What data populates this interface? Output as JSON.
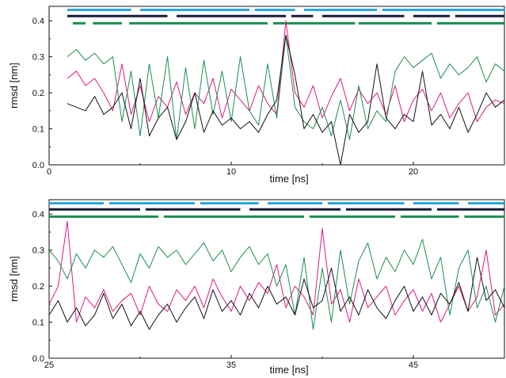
{
  "chart_data": [
    {
      "type": "line",
      "title": "",
      "xlabel": "time [ns]",
      "ylabel": "rmsd [nm]",
      "xlim": [
        0,
        25
      ],
      "ylim": [
        0,
        0.44
      ],
      "x_ticks": [
        "0",
        "10",
        "20"
      ],
      "y_ticks": [
        "0.0",
        "0.1",
        "0.2",
        "0.3",
        "0.4"
      ],
      "grid": false,
      "legend": "none",
      "series": [
        {
          "color": "#e0197d",
          "x": [
            1,
            1.5,
            2,
            2.5,
            3,
            3.5,
            4,
            4.5,
            5,
            5.5,
            6,
            6.5,
            7,
            7.5,
            8,
            8.5,
            9,
            9.5,
            10,
            10.5,
            11,
            11.5,
            12,
            12.5,
            13,
            13.5,
            14,
            14.5,
            15,
            15.5,
            16,
            16.5,
            17,
            17.5,
            18,
            18.5,
            19,
            19.5,
            20,
            20.5,
            21,
            21.5,
            22,
            22.5,
            23,
            23.5,
            24,
            24.5,
            25
          ],
          "y": [
            0.24,
            0.26,
            0.22,
            0.24,
            0.2,
            0.15,
            0.28,
            0.14,
            0.22,
            0.12,
            0.19,
            0.16,
            0.23,
            0.14,
            0.2,
            0.17,
            0.24,
            0.13,
            0.21,
            0.18,
            0.15,
            0.22,
            0.17,
            0.14,
            0.4,
            0.2,
            0.16,
            0.22,
            0.13,
            0.19,
            0.24,
            0.15,
            0.21,
            0.17,
            0.2,
            0.14,
            0.22,
            0.12,
            0.18,
            0.21,
            0.15,
            0.2,
            0.13,
            0.17,
            0.2,
            0.12,
            0.16,
            0.18,
            0.17
          ]
        },
        {
          "color": "#1a8f4e",
          "x": [
            1,
            1.5,
            2,
            2.5,
            3,
            3.5,
            4,
            4.5,
            5,
            5.5,
            6,
            6.5,
            7,
            7.5,
            8,
            8.5,
            9,
            9.5,
            10,
            10.5,
            11,
            11.5,
            12,
            12.5,
            13,
            13.5,
            14,
            14.5,
            15,
            15.5,
            16,
            16.5,
            17,
            17.5,
            18,
            18.5,
            19,
            19.5,
            20,
            20.5,
            21,
            21.5,
            22,
            22.5,
            23,
            23.5,
            24,
            24.5,
            25
          ],
          "y": [
            0.3,
            0.32,
            0.29,
            0.31,
            0.28,
            0.3,
            0.12,
            0.26,
            0.08,
            0.28,
            0.13,
            0.3,
            0.07,
            0.27,
            0.1,
            0.29,
            0.14,
            0.26,
            0.12,
            0.3,
            0.15,
            0.11,
            0.28,
            0.13,
            0.36,
            0.16,
            0.12,
            0.1,
            0.16,
            0.08,
            0.18,
            0.07,
            0.22,
            0.1,
            0.15,
            0.12,
            0.26,
            0.3,
            0.27,
            0.29,
            0.31,
            0.24,
            0.28,
            0.25,
            0.27,
            0.3,
            0.23,
            0.28,
            0.26
          ]
        },
        {
          "color": "#111111",
          "x": [
            1,
            1.5,
            2,
            2.5,
            3,
            3.5,
            4,
            4.5,
            5,
            5.5,
            6,
            6.5,
            7,
            7.5,
            8,
            8.5,
            9,
            9.5,
            10,
            10.5,
            11,
            11.5,
            12,
            12.5,
            13,
            13.5,
            14,
            14.5,
            15,
            15.5,
            16,
            16.5,
            17,
            17.5,
            18,
            18.5,
            19,
            19.5,
            20,
            20.5,
            21,
            21.5,
            22,
            22.5,
            23,
            23.5,
            24,
            24.5,
            25
          ],
          "y": [
            0.17,
            0.16,
            0.15,
            0.19,
            0.14,
            0.16,
            0.2,
            0.1,
            0.24,
            0.08,
            0.13,
            0.16,
            0.07,
            0.12,
            0.2,
            0.09,
            0.15,
            0.11,
            0.13,
            0.1,
            0.12,
            0.09,
            0.14,
            0.18,
            0.36,
            0.25,
            0.1,
            0.14,
            0.09,
            0.12,
            0.0,
            0.14,
            0.09,
            0.12,
            0.28,
            0.13,
            0.1,
            0.14,
            0.12,
            0.26,
            0.11,
            0.14,
            0.1,
            0.16,
            0.09,
            0.14,
            0.2,
            0.16,
            0.18
          ]
        }
      ],
      "bars": [
        {
          "color": "#2aa6e0",
          "y": 0.43,
          "on": [
            [
              1,
              4.5
            ],
            [
              5,
              11
            ],
            [
              11.3,
              13.5
            ],
            [
              14,
              18
            ],
            [
              18.3,
              25
            ]
          ]
        },
        {
          "color": "#1a1a3a",
          "y": 0.413,
          "on": [
            [
              1,
              6.5
            ],
            [
              7,
              13
            ],
            [
              13.3,
              14.5
            ],
            [
              15,
              19.5
            ],
            [
              20,
              22
            ],
            [
              22.3,
              25
            ]
          ]
        },
        {
          "color": "#1a8f4e",
          "y": 0.393,
          "on": [
            [
              1.3,
              2
            ],
            [
              2.4,
              4
            ],
            [
              4.4,
              12
            ],
            [
              12.3,
              16.8
            ],
            [
              17,
              21
            ],
            [
              21.3,
              25
            ]
          ]
        }
      ]
    },
    {
      "type": "line",
      "title": "",
      "xlabel": "time [ns]",
      "ylabel": "rmsd [nm]",
      "xlim": [
        25,
        50
      ],
      "ylim": [
        0,
        0.44
      ],
      "x_ticks": [
        "25",
        "35",
        "45"
      ],
      "y_ticks": [
        "0.0",
        "0.1",
        "0.2",
        "0.3",
        "0.4"
      ],
      "grid": false,
      "legend": "none",
      "series": [
        {
          "color": "#e0197d",
          "x": [
            25,
            25.5,
            26,
            26.5,
            27,
            27.5,
            28,
            28.5,
            29,
            29.5,
            30,
            30.5,
            31,
            31.5,
            32,
            32.5,
            33,
            33.5,
            34,
            34.5,
            35,
            35.5,
            36,
            36.5,
            37,
            37.5,
            38,
            38.5,
            39,
            39.5,
            40,
            40.5,
            41,
            41.5,
            42,
            42.5,
            43,
            43.5,
            44,
            44.5,
            45,
            45.5,
            46,
            46.5,
            47,
            47.5,
            48,
            48.5,
            49,
            49.5,
            50
          ],
          "y": [
            0.15,
            0.2,
            0.38,
            0.1,
            0.17,
            0.14,
            0.19,
            0.13,
            0.16,
            0.18,
            0.12,
            0.2,
            0.15,
            0.13,
            0.19,
            0.16,
            0.2,
            0.14,
            0.22,
            0.17,
            0.13,
            0.2,
            0.16,
            0.21,
            0.18,
            0.26,
            0.14,
            0.2,
            0.17,
            0.12,
            0.36,
            0.15,
            0.19,
            0.1,
            0.22,
            0.14,
            0.17,
            0.2,
            0.12,
            0.16,
            0.19,
            0.13,
            0.18,
            0.1,
            0.15,
            0.2,
            0.13,
            0.17,
            0.3,
            0.12,
            0.15
          ]
        },
        {
          "color": "#1a8f4e",
          "x": [
            25,
            25.5,
            26,
            26.5,
            27,
            27.5,
            28,
            28.5,
            29,
            29.5,
            30,
            30.5,
            31,
            31.5,
            32,
            32.5,
            33,
            33.5,
            34,
            34.5,
            35,
            35.5,
            36,
            36.5,
            37,
            37.5,
            38,
            38.5,
            39,
            39.5,
            40,
            40.5,
            41,
            41.5,
            42,
            42.5,
            43,
            43.5,
            44,
            44.5,
            45,
            45.5,
            46,
            46.5,
            47,
            47.5,
            48,
            48.5,
            49,
            49.5,
            50
          ],
          "y": [
            0.3,
            0.27,
            0.22,
            0.29,
            0.25,
            0.3,
            0.28,
            0.31,
            0.26,
            0.21,
            0.29,
            0.25,
            0.31,
            0.28,
            0.3,
            0.26,
            0.29,
            0.32,
            0.27,
            0.3,
            0.24,
            0.28,
            0.31,
            0.26,
            0.29,
            0.2,
            0.26,
            0.12,
            0.28,
            0.08,
            0.25,
            0.1,
            0.3,
            0.15,
            0.27,
            0.32,
            0.22,
            0.28,
            0.24,
            0.3,
            0.26,
            0.33,
            0.22,
            0.28,
            0.12,
            0.25,
            0.3,
            0.14,
            0.2,
            0.1,
            0.2
          ]
        },
        {
          "color": "#111111",
          "x": [
            25,
            25.5,
            26,
            26.5,
            27,
            27.5,
            28,
            28.5,
            29,
            29.5,
            30,
            30.5,
            31,
            31.5,
            32,
            32.5,
            33,
            33.5,
            34,
            34.5,
            35,
            35.5,
            36,
            36.5,
            37,
            37.5,
            38,
            38.5,
            39,
            39.5,
            40,
            40.5,
            41,
            41.5,
            42,
            42.5,
            43,
            43.5,
            44,
            44.5,
            45,
            45.5,
            46,
            46.5,
            47,
            47.5,
            48,
            48.5,
            49,
            49.5,
            50
          ],
          "y": [
            0.12,
            0.16,
            0.1,
            0.14,
            0.09,
            0.12,
            0.18,
            0.11,
            0.15,
            0.09,
            0.13,
            0.08,
            0.12,
            0.15,
            0.1,
            0.14,
            0.17,
            0.11,
            0.19,
            0.13,
            0.16,
            0.12,
            0.18,
            0.14,
            0.2,
            0.15,
            0.17,
            0.12,
            0.22,
            0.14,
            0.16,
            0.25,
            0.13,
            0.17,
            0.12,
            0.19,
            0.14,
            0.11,
            0.16,
            0.2,
            0.13,
            0.17,
            0.12,
            0.18,
            0.15,
            0.21,
            0.13,
            0.28,
            0.16,
            0.19,
            0.14
          ]
        }
      ],
      "bars": [
        {
          "color": "#2aa6e0",
          "y": 0.43,
          "on": [
            [
              25,
              28
            ],
            [
              28.3,
              33
            ],
            [
              33.3,
              36.5
            ],
            [
              37,
              40
            ],
            [
              40.3,
              44.5
            ],
            [
              45,
              47.5
            ],
            [
              48,
              50
            ]
          ]
        },
        {
          "color": "#1a1a3a",
          "y": 0.413,
          "on": [
            [
              25,
              30
            ],
            [
              30.3,
              35.5
            ],
            [
              36,
              41
            ],
            [
              41.3,
              46
            ],
            [
              46.3,
              50
            ]
          ]
        },
        {
          "color": "#1a8f4e",
          "y": 0.393,
          "on": [
            [
              25,
              31
            ],
            [
              31.3,
              39
            ],
            [
              39.3,
              44
            ],
            [
              44.3,
              47.5
            ],
            [
              47.8,
              50
            ]
          ]
        }
      ]
    }
  ]
}
